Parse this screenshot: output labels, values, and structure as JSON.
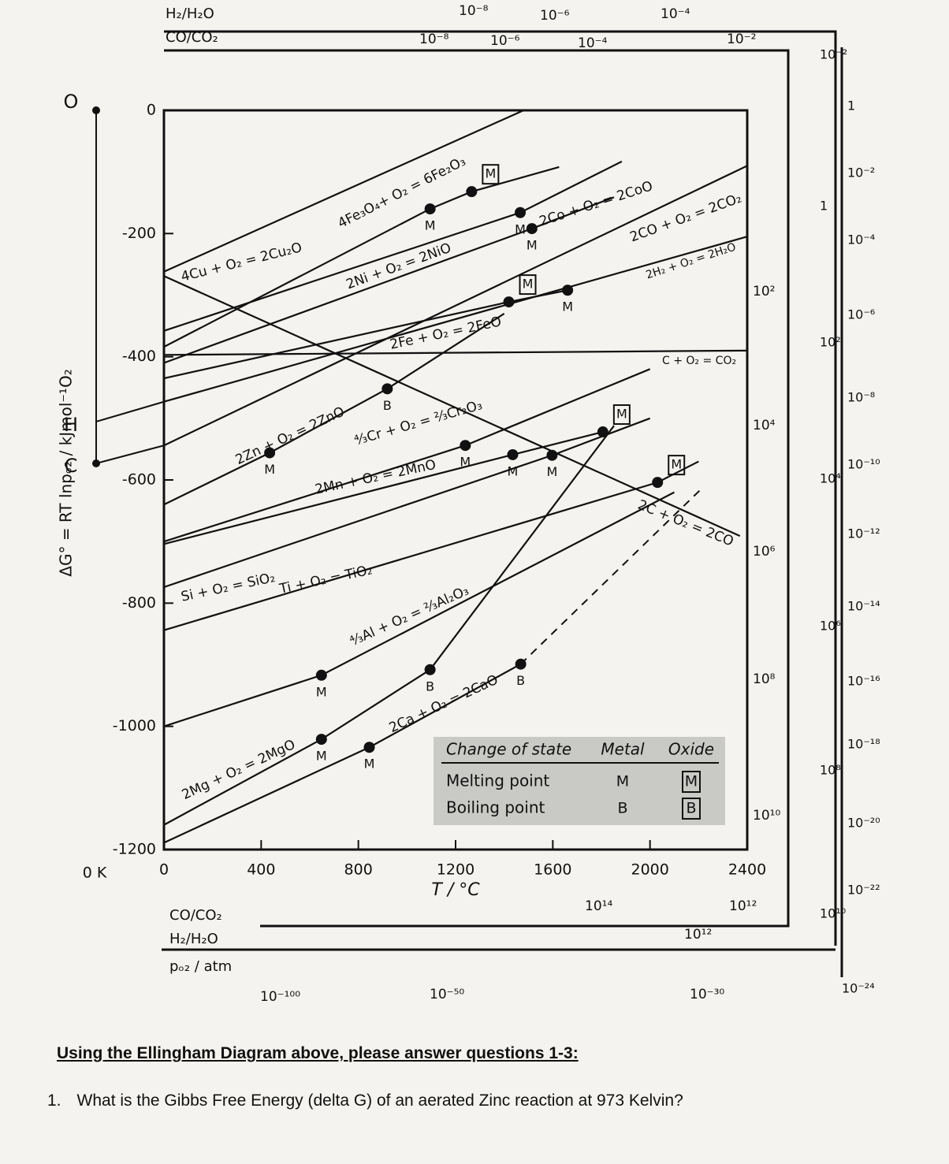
{
  "chart_data": {
    "type": "line",
    "y_label": "ΔG° = RT lnpₒ₂ / kJmol⁻¹O₂",
    "x_label": "T / °C",
    "xlim": [
      0,
      2400
    ],
    "xticks": [
      0,
      400,
      800,
      1200,
      1600,
      2000,
      2400
    ],
    "ylim": [
      -1200,
      0
    ],
    "yticks": [
      0,
      -200,
      -400,
      -600,
      -800,
      -1000,
      -1200
    ],
    "zero_kelvin_label": "0 K",
    "pivots": [
      "O",
      "H",
      "C"
    ],
    "color": "#111111",
    "series": [
      {
        "name": "4Cu + O₂ = 2Cu₂O",
        "x": [
          0,
          1480
        ],
        "values": [
          -262,
          0
        ]
      },
      {
        "name": "4Fe₃O₄+ O₂ = 6Fe₂O₃",
        "x": [
          0,
          1095,
          1266,
          1626
        ],
        "values": [
          -384,
          -160,
          -132,
          -92
        ],
        "markers": [
          {
            "x": 1095,
            "value": -160,
            "label": "M"
          },
          {
            "x": 1266,
            "value": -132,
            "label": "M",
            "boxed": true
          }
        ]
      },
      {
        "name": "2Ni + O₂ = 2NiO",
        "x": [
          0,
          1466,
          1884
        ],
        "values": [
          -358,
          -166,
          -83
        ],
        "markers": [
          {
            "x": 1466,
            "value": -166,
            "label": "M"
          }
        ]
      },
      {
        "name": "2Co + O₂ = 2CoO",
        "x": [
          0,
          1514,
          1852
        ],
        "values": [
          -410,
          -192,
          -141
        ],
        "markers": [
          {
            "x": 1514,
            "value": -192,
            "label": "M"
          }
        ]
      },
      {
        "name": "2CO + O₂ = 2CO₂",
        "x": [
          0,
          2400
        ],
        "values": [
          -544,
          -90
        ]
      },
      {
        "name": "2H₂ + O₂ = 2H₂O",
        "x": [
          0,
          2400
        ],
        "values": [
          -473,
          -205
        ]
      },
      {
        "name": "2Fe + O₂ = 2FeO",
        "x": [
          0,
          1419,
          1661
        ],
        "values": [
          -435,
          -311,
          -292
        ],
        "markers": [
          {
            "x": 1419,
            "value": -311,
            "label": "M",
            "boxed": true
          },
          {
            "x": 1661,
            "value": -292,
            "label": "M"
          }
        ]
      },
      {
        "name": "C + O₂ = CO₂",
        "x": [
          0,
          2400
        ],
        "values": [
          -397,
          -390
        ]
      },
      {
        "name": "2C + O₂ = 2CO",
        "x": [
          0,
          2370
        ],
        "values": [
          -269,
          -691
        ]
      },
      {
        "name": "2Zn + O₂ = 2ZnO",
        "x": [
          0,
          435,
          919,
          1400
        ],
        "values": [
          -640,
          -556,
          -452,
          -330
        ],
        "markers": [
          {
            "x": 435,
            "value": -556,
            "label": "M"
          },
          {
            "x": 919,
            "value": -452,
            "label": "B"
          }
        ]
      },
      {
        "name": "⁴⁄₃Cr + O₂ = ²⁄₃Cr₂O₃",
        "x": [
          0,
          1240,
          2000
        ],
        "values": [
          -700,
          -544,
          -420
        ],
        "markers": [
          {
            "x": 1240,
            "value": -544,
            "label": "M"
          }
        ]
      },
      {
        "name": "2Mn + O₂ = 2MnO",
        "x": [
          0,
          1435,
          1806
        ],
        "values": [
          -704,
          -559,
          -522
        ],
        "markers": [
          {
            "x": 1435,
            "value": -559,
            "label": "M"
          },
          {
            "x": 1806,
            "value": -522,
            "label": "M",
            "boxed": true
          }
        ]
      },
      {
        "name": "Si + O₂ = SiO₂",
        "x": [
          0,
          1597,
          2000
        ],
        "values": [
          -774,
          -560,
          -500
        ],
        "markers": [
          {
            "x": 1597,
            "value": -560,
            "label": "M"
          }
        ]
      },
      {
        "name": "Ti + O₂ = TiO₂",
        "x": [
          0,
          2031,
          2200
        ],
        "values": [
          -844,
          -604,
          -570
        ],
        "markers": [
          {
            "x": 2031,
            "value": -604,
            "label": "M",
            "boxed": true
          }
        ]
      },
      {
        "name": "⁴⁄₃Al + O₂ = ²⁄₃Al₂O₃",
        "x": [
          0,
          648,
          2100
        ],
        "values": [
          -1000,
          -917,
          -620
        ],
        "markers": [
          {
            "x": 648,
            "value": -917,
            "label": "M"
          }
        ]
      },
      {
        "name": "2Mg + O₂ = 2MgO",
        "x": [
          0,
          648,
          1095,
          1852
        ],
        "values": [
          -1160,
          -1021,
          -908,
          -512
        ],
        "markers": [
          {
            "x": 648,
            "value": -1021,
            "label": "M"
          },
          {
            "x": 1095,
            "value": -908,
            "label": "B"
          }
        ]
      },
      {
        "name": "2Ca + O₂ = 2CaO",
        "x": [
          0,
          845,
          1468
        ],
        "values": [
          -1189,
          -1034,
          -899
        ],
        "markers": [
          {
            "x": 845,
            "value": -1034,
            "label": "M"
          },
          {
            "x": 1468,
            "value": -899,
            "label": "B"
          }
        ],
        "dash_to": {
          "x": 2210,
          "value": -615
        }
      }
    ],
    "legend": {
      "title": "Change of state",
      "columns": [
        "Metal",
        "Oxide"
      ],
      "rows": [
        {
          "label": "Melting point",
          "metal": "M",
          "oxide": "M"
        },
        {
          "label": "Boiling point",
          "metal": "B",
          "oxide": "B"
        }
      ]
    },
    "scales": {
      "top_titles": [
        "H₂/H₂O",
        "CO/CO₂"
      ],
      "top_h2_h2o": [
        "10⁻⁸",
        "10⁻⁶",
        "10⁻⁴"
      ],
      "top_co_co2": [
        "10⁻⁸",
        "10⁻⁶",
        "10⁻⁴",
        "10⁻²"
      ],
      "right_co_co2": [
        "10²",
        "10⁴",
        "10⁶",
        "10⁸",
        "10¹⁰"
      ],
      "right_h2_h2o": [
        "10⁻²",
        "1",
        "10²",
        "10⁴",
        "10⁶",
        "10⁸",
        "10¹⁰"
      ],
      "right_po2": [
        "1",
        "10⁻²",
        "10⁻⁴",
        "10⁻⁶",
        "10⁻⁸",
        "10⁻¹⁰",
        "10⁻¹²",
        "10⁻¹⁴",
        "10⁻¹⁶",
        "10⁻¹⁸",
        "10⁻²⁰",
        "10⁻²²",
        "10⁻²⁴"
      ],
      "bottom_titles": [
        "CO/CO₂",
        "H₂/H₂O",
        "pₒ₂ / atm"
      ],
      "bottom_co_co2": [
        "10¹⁴",
        "10¹²"
      ],
      "bottom_h2_h2o": [
        "10¹²"
      ],
      "bottom_po2": [
        "10⁻¹⁰⁰",
        "10⁻⁵⁰",
        "10⁻³⁰"
      ]
    }
  },
  "heading": "Using the Ellingham Diagram above, please answer questions 1-3:",
  "questions": [
    {
      "number": "1.",
      "text": "What is the Gibbs Free Energy (delta G) of an aerated Zinc reaction at 973 Kelvin?"
    }
  ]
}
